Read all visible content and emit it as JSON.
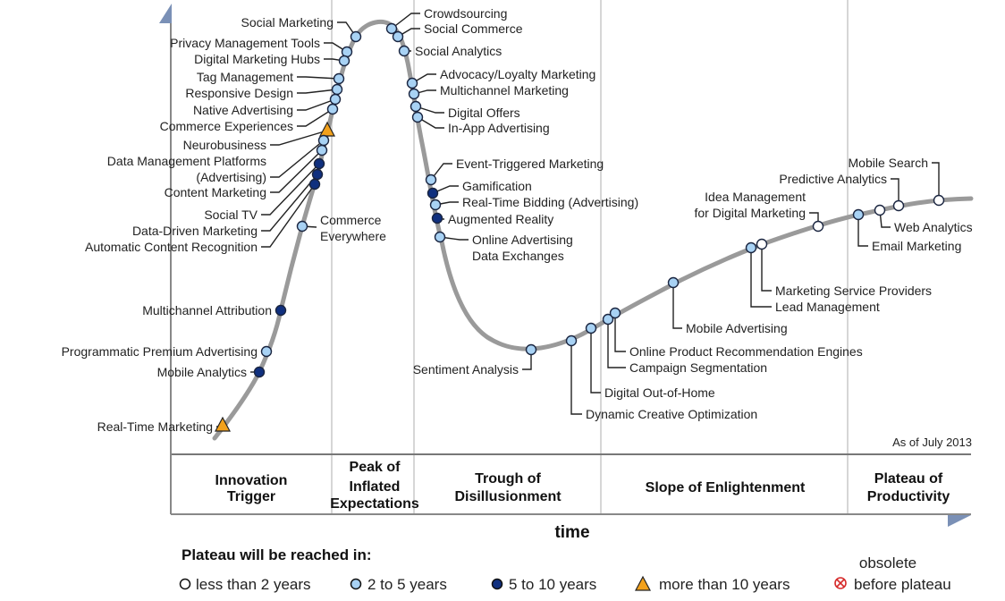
{
  "as_of": "As of July 2013",
  "x_axis_label": "time",
  "phases": [
    {
      "lines": [
        "Innovation",
        "Trigger"
      ]
    },
    {
      "lines": [
        "Peak of",
        "Inflated",
        "Expectations"
      ]
    },
    {
      "lines": [
        "Trough of",
        "Disillusionment"
      ]
    },
    {
      "lines": [
        "Slope of Enlightenment"
      ]
    },
    {
      "lines": [
        "Plateau of",
        "Productivity"
      ]
    }
  ],
  "legend": {
    "title": "Plateau will be reached in:",
    "entries": [
      {
        "label": "less than 2 years",
        "marker": "white-circle"
      },
      {
        "label": "2 to 5 years",
        "marker": "light-blue-circle"
      },
      {
        "label": "5 to 10 years",
        "marker": "dark-blue-circle"
      },
      {
        "label": "more than 10 years",
        "marker": "orange-triangle"
      },
      {
        "label_lines": [
          "obsolete",
          "before plateau"
        ],
        "marker": "red-crossed-circle"
      }
    ]
  },
  "colors": {
    "lt2": "#ffffff",
    "2to5": "#a8d2f4",
    "5to10": "#10307f",
    "gt10": "#f2a11c",
    "obsolete": "#d62b2b",
    "curve": "#9a9a9a",
    "axis_arrow": "#7a90b6"
  },
  "items": [
    {
      "label": [
        "Social Marketing"
      ],
      "status": "2to5"
    },
    {
      "label": [
        "Privacy Management Tools"
      ],
      "status": "2to5"
    },
    {
      "label": [
        "Digital Marketing Hubs"
      ],
      "status": "2to5"
    },
    {
      "label": [
        "Tag Management"
      ],
      "status": "2to5"
    },
    {
      "label": [
        "Responsive Design"
      ],
      "status": "2to5"
    },
    {
      "label": [
        "Native Advertising"
      ],
      "status": "2to5"
    },
    {
      "label": [
        "Commerce Experiences"
      ],
      "status": "2to5"
    },
    {
      "label": [
        "Neurobusiness"
      ],
      "status": "gt10"
    },
    {
      "label": [
        "Data Management Platforms",
        "(Advertising)"
      ],
      "status": "2to5"
    },
    {
      "label": [
        "Content Marketing"
      ],
      "status": "2to5"
    },
    {
      "label": [
        "Social TV"
      ],
      "status": "5to10"
    },
    {
      "label": [
        "Data-Driven Marketing"
      ],
      "status": "5to10"
    },
    {
      "label": [
        "Automatic Content Recognition"
      ],
      "status": "5to10"
    },
    {
      "label": [
        "Commerce",
        "Everywhere"
      ],
      "status": "2to5"
    },
    {
      "label": [
        "Multichannel Attribution"
      ],
      "status": "5to10"
    },
    {
      "label": [
        "Programmatic Premium Advertising"
      ],
      "status": "2to5"
    },
    {
      "label": [
        "Mobile Analytics"
      ],
      "status": "5to10"
    },
    {
      "label": [
        "Real-Time Marketing"
      ],
      "status": "gt10"
    },
    {
      "label": [
        "Crowdsourcing"
      ],
      "status": "2to5"
    },
    {
      "label": [
        "Social Commerce"
      ],
      "status": "2to5"
    },
    {
      "label": [
        "Social Analytics"
      ],
      "status": "2to5"
    },
    {
      "label": [
        "Advocacy/Loyalty Marketing"
      ],
      "status": "2to5"
    },
    {
      "label": [
        "Multichannel Marketing"
      ],
      "status": "2to5"
    },
    {
      "label": [
        "Digital Offers"
      ],
      "status": "2to5"
    },
    {
      "label": [
        "In-App Advertising"
      ],
      "status": "2to5"
    },
    {
      "label": [
        "Event-Triggered Marketing"
      ],
      "status": "2to5"
    },
    {
      "label": [
        "Gamification"
      ],
      "status": "5to10"
    },
    {
      "label": [
        "Real-Time Bidding (Advertising)"
      ],
      "status": "2to5"
    },
    {
      "label": [
        "Augmented Reality"
      ],
      "status": "5to10"
    },
    {
      "label": [
        "Online Advertising",
        "Data Exchanges"
      ],
      "status": "2to5"
    },
    {
      "label": [
        "Sentiment Analysis"
      ],
      "status": "2to5"
    },
    {
      "label": [
        "Dynamic Creative Optimization"
      ],
      "status": "2to5"
    },
    {
      "label": [
        "Digital Out-of-Home"
      ],
      "status": "2to5"
    },
    {
      "label": [
        "Campaign Segmentation"
      ],
      "status": "2to5"
    },
    {
      "label": [
        "Online Product Recommendation Engines"
      ],
      "status": "2to5"
    },
    {
      "label": [
        "Mobile Advertising"
      ],
      "status": "2to5"
    },
    {
      "label": [
        "Lead Management"
      ],
      "status": "2to5"
    },
    {
      "label": [
        "Marketing Service Providers"
      ],
      "status": "lt2"
    },
    {
      "label": [
        "Idea Management",
        "for Digital Marketing"
      ],
      "status": "lt2"
    },
    {
      "label": [
        "Email Marketing"
      ],
      "status": "2to5"
    },
    {
      "label": [
        "Web Analytics"
      ],
      "status": "lt2"
    },
    {
      "label": [
        "Predictive Analytics"
      ],
      "status": "lt2"
    },
    {
      "label": [
        "Mobile Search"
      ],
      "status": "lt2"
    }
  ]
}
